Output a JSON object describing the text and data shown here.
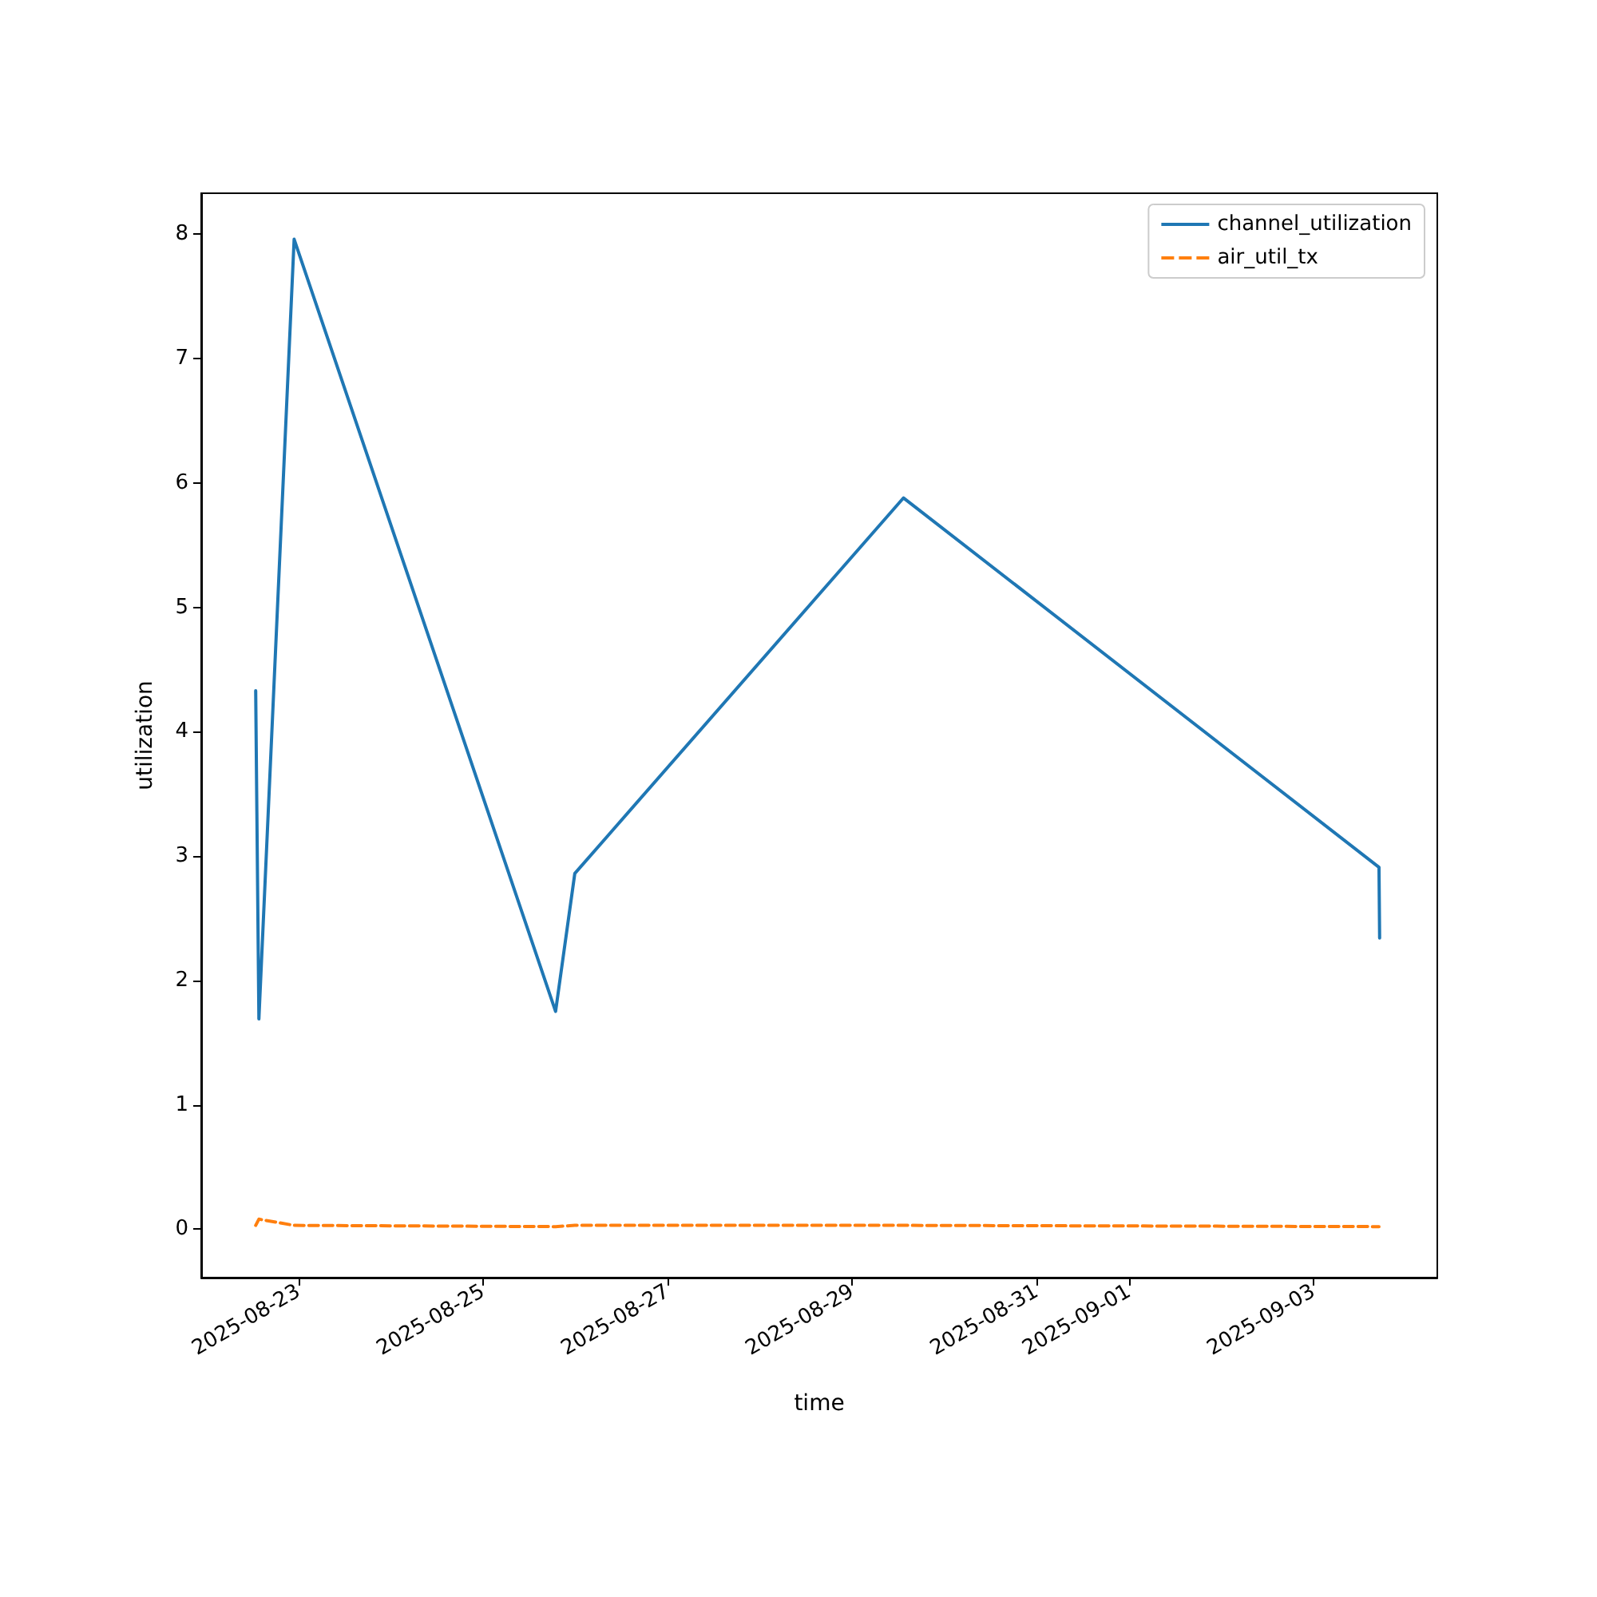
{
  "chart_data": {
    "type": "line",
    "xlabel": "time",
    "ylabel": "utilization",
    "x": [
      "2025-08-22T12:50",
      "2025-08-22T13:40",
      "2025-08-22T22:50",
      "2025-08-25T18:50",
      "2025-08-25T23:50",
      "2025-08-29T13:20",
      "2025-09-03T17:00",
      "2025-09-03T17:10"
    ],
    "series": [
      {
        "name": "channel_utilization",
        "color": "#1f77b4",
        "line_style": "solid",
        "values": [
          4.33,
          1.69,
          7.96,
          1.75,
          2.86,
          5.88,
          2.91,
          2.34
        ]
      },
      {
        "name": "air_util_tx",
        "color": "#ff7f0e",
        "line_style": "dashed",
        "values": [
          0.03,
          0.08,
          0.03,
          0.02,
          0.03,
          0.03,
          0.02,
          0.02
        ]
      }
    ],
    "xlim": [
      "2025-08-21T22:40",
      "2025-09-04T08:10"
    ],
    "xticks": [
      "2025-08-23",
      "2025-08-25",
      "2025-08-27",
      "2025-08-29",
      "2025-08-31",
      "2025-09-01",
      "2025-09-03"
    ],
    "ylim": [
      -0.39,
      8.33
    ],
    "yticks": [
      0,
      1,
      2,
      3,
      4,
      5,
      6,
      7,
      8
    ],
    "legend": "top right",
    "marker": "none",
    "grid": false
  }
}
